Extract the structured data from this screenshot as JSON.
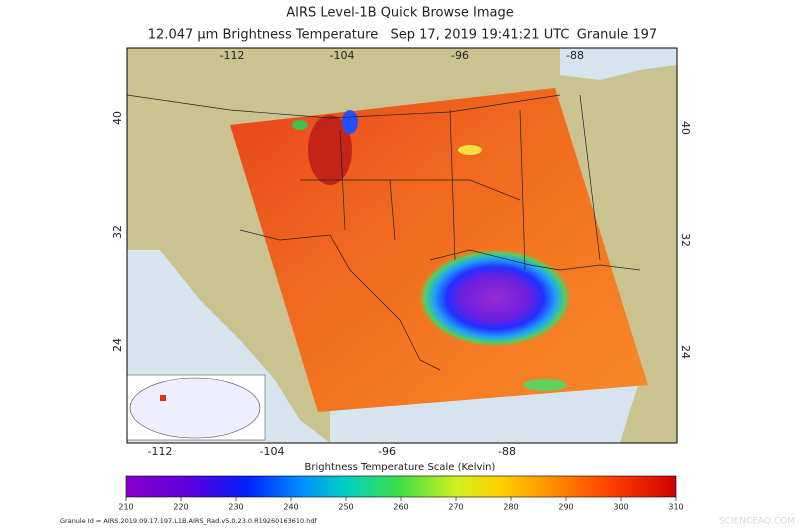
{
  "header": {
    "title": "AIRS Level-1B Quick Browse Image",
    "subtitle_parts": [
      "12.047 μm Brightness Temperature",
      "Sep 17, 2019 19:41:21 UTC",
      "Granule 197"
    ]
  },
  "map": {
    "lon_labels": [
      "-112",
      "-104",
      "-96",
      "-88"
    ],
    "lat_labels": [
      "40",
      "32",
      "24"
    ]
  },
  "colorbar": {
    "title": "Brightness Temperature Scale (Kelvin)",
    "ticks": [
      "210",
      "220",
      "230",
      "240",
      "250",
      "260",
      "270",
      "280",
      "290",
      "300",
      "310"
    ]
  },
  "footer": {
    "granule_id": "Granule Id = AIRS.2019.09.17.197.L1B.AIRS_Rad.v5.0.23.0.R19260163610.hdf"
  },
  "watermark": "SCIENCEAQ.COM"
}
